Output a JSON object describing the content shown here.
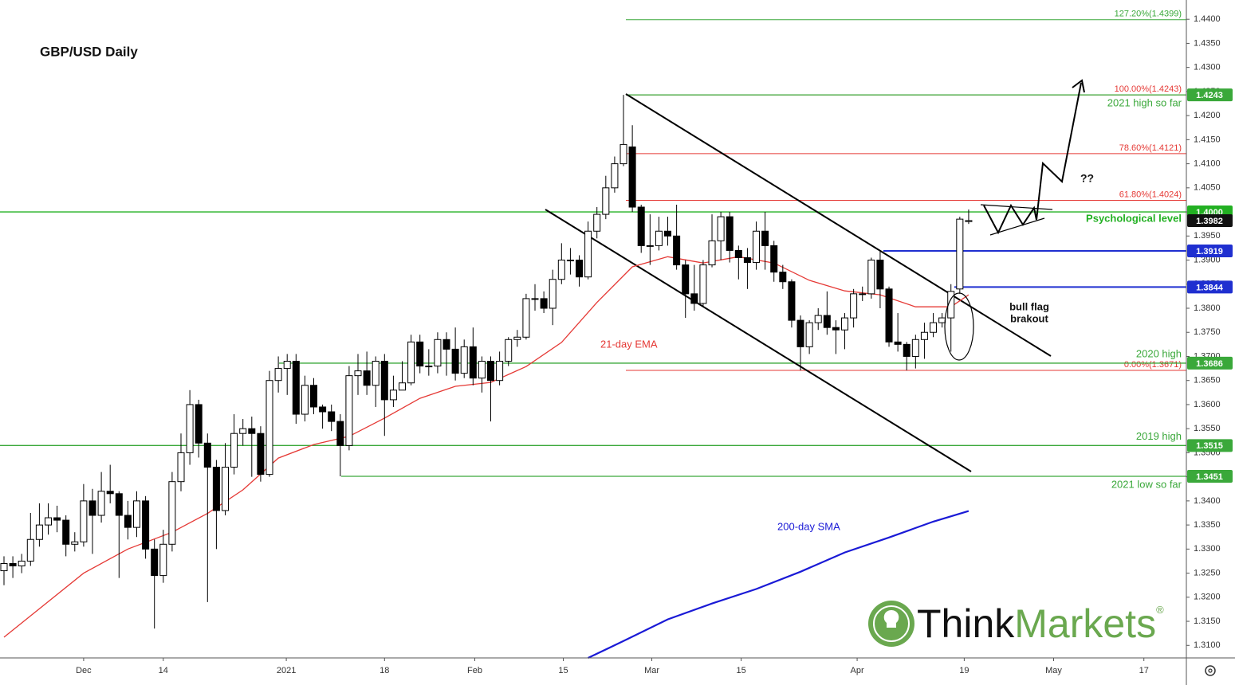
{
  "chart_data": {
    "type": "candlestick",
    "title": "GBP/USD Daily",
    "up_color": "#ffffff",
    "down_color": "#000000",
    "x": [
      0,
      1,
      2,
      3,
      4,
      5,
      6,
      7,
      8,
      9,
      10,
      11,
      12,
      13,
      14,
      15,
      16,
      17,
      18,
      19,
      20,
      21,
      22,
      23,
      24,
      25,
      26,
      27,
      28,
      29,
      30,
      31,
      32,
      33,
      34,
      35,
      36,
      37,
      38,
      39,
      40,
      41,
      42,
      43,
      44,
      45,
      46,
      47,
      48,
      49,
      50,
      51,
      52,
      53,
      54,
      55,
      56,
      57,
      58,
      59,
      60,
      61,
      62,
      63,
      64,
      65,
      66,
      67,
      68,
      69,
      70,
      71,
      72,
      73,
      74,
      75,
      76,
      77,
      78,
      79,
      80,
      81,
      82,
      83,
      84,
      85,
      86,
      87,
      88,
      89,
      90,
      91,
      92,
      93,
      94,
      95,
      96,
      97,
      98,
      99,
      100,
      101,
      102,
      103,
      104,
      105,
      106,
      107,
      108,
      109
    ],
    "open": [
      1.3255,
      1.327,
      1.3265,
      1.3275,
      1.332,
      1.335,
      1.3365,
      1.336,
      1.331,
      1.3315,
      1.34,
      1.337,
      1.342,
      1.3415,
      1.337,
      1.3345,
      1.34,
      1.33,
      1.3245,
      1.331,
      1.344,
      1.35,
      1.36,
      1.352,
      1.347,
      1.338,
      1.347,
      1.354,
      1.355,
      1.354,
      1.3455,
      1.365,
      1.3675,
      1.369,
      1.358,
      1.364,
      1.3595,
      1.3585,
      1.3565,
      1.3515,
      1.366,
      1.367,
      1.364,
      1.369,
      1.361,
      1.363,
      1.3645,
      1.373,
      1.368,
      1.368,
      1.3735,
      1.3715,
      1.3665,
      1.372,
      1.3655,
      1.369,
      1.365,
      1.369,
      1.3735,
      1.374,
      1.382,
      1.382,
      1.38,
      1.386,
      1.39,
      1.39,
      1.3865,
      1.396,
      1.3995,
      1.405,
      1.41,
      1.4135,
      1.401,
      1.393,
      1.393,
      1.396,
      1.395,
      1.389,
      1.383,
      1.381,
      1.389,
      1.394,
      1.399,
      1.392,
      1.3905,
      1.3895,
      1.396,
      1.393,
      1.3875,
      1.3855,
      1.3775,
      1.372,
      1.377,
      1.3785,
      1.376,
      1.3755,
      1.378,
      1.383,
      1.383,
      1.39,
      1.384,
      1.373,
      1.3725,
      1.37,
      1.3735,
      1.375,
      1.377,
      1.378,
      1.384,
      1.398
    ],
    "high": [
      1.3285,
      1.3285,
      1.329,
      1.3375,
      1.3395,
      1.3395,
      1.339,
      1.337,
      1.3335,
      1.3435,
      1.3425,
      1.346,
      1.3475,
      1.342,
      1.34,
      1.342,
      1.341,
      1.332,
      1.334,
      1.346,
      1.354,
      1.363,
      1.361,
      1.354,
      1.3485,
      1.352,
      1.358,
      1.357,
      1.3575,
      1.3555,
      1.367,
      1.37,
      1.3705,
      1.3705,
      1.366,
      1.3655,
      1.36,
      1.36,
      1.358,
      1.368,
      1.3705,
      1.371,
      1.37,
      1.3705,
      1.366,
      1.369,
      1.3745,
      1.3745,
      1.3715,
      1.375,
      1.375,
      1.376,
      1.3735,
      1.376,
      1.37,
      1.37,
      1.371,
      1.374,
      1.3755,
      1.383,
      1.385,
      1.3835,
      1.388,
      1.3935,
      1.3925,
      1.391,
      1.398,
      1.401,
      1.4075,
      1.4115,
      1.4243,
      1.418,
      1.4015,
      1.3995,
      1.399,
      1.399,
      1.4015,
      1.39,
      1.389,
      1.39,
      1.3995,
      1.4,
      1.4,
      1.393,
      1.3925,
      1.398,
      1.4,
      1.394,
      1.389,
      1.386,
      1.3785,
      1.3775,
      1.38,
      1.3835,
      1.3775,
      1.379,
      1.384,
      1.3845,
      1.3905,
      1.392,
      1.3845,
      1.379,
      1.373,
      1.3745,
      1.377,
      1.379,
      1.379,
      1.385,
      1.399,
      1.4005
    ],
    "low": [
      1.3225,
      1.324,
      1.325,
      1.3265,
      1.3305,
      1.333,
      1.3335,
      1.3285,
      1.3295,
      1.3305,
      1.329,
      1.3355,
      1.3395,
      1.324,
      1.332,
      1.3325,
      1.328,
      1.3135,
      1.323,
      1.3295,
      1.342,
      1.3475,
      1.349,
      1.319,
      1.33,
      1.337,
      1.3455,
      1.3515,
      1.345,
      1.344,
      1.345,
      1.3625,
      1.362,
      1.356,
      1.3565,
      1.358,
      1.355,
      1.3545,
      1.3451,
      1.3505,
      1.362,
      1.362,
      1.3595,
      1.3535,
      1.3595,
      1.363,
      1.364,
      1.3665,
      1.366,
      1.3665,
      1.366,
      1.365,
      1.3655,
      1.364,
      1.3625,
      1.3565,
      1.364,
      1.368,
      1.372,
      1.3735,
      1.3795,
      1.379,
      1.3765,
      1.385,
      1.387,
      1.3845,
      1.386,
      1.3945,
      1.3985,
      1.404,
      1.4095,
      1.4,
      1.3915,
      1.389,
      1.392,
      1.393,
      1.388,
      1.378,
      1.3795,
      1.3805,
      1.3885,
      1.39,
      1.3895,
      1.386,
      1.384,
      1.388,
      1.388,
      1.3855,
      1.384,
      1.376,
      1.3671,
      1.3705,
      1.3755,
      1.3745,
      1.3705,
      1.3715,
      1.376,
      1.3815,
      1.382,
      1.38,
      1.372,
      1.371,
      1.3671,
      1.3675,
      1.3695,
      1.374,
      1.376,
      1.371,
      1.383,
      1.3975
    ],
    "close": [
      1.327,
      1.3265,
      1.3275,
      1.332,
      1.335,
      1.3365,
      1.336,
      1.331,
      1.3315,
      1.34,
      1.337,
      1.342,
      1.3415,
      1.337,
      1.3345,
      1.34,
      1.33,
      1.3245,
      1.331,
      1.344,
      1.35,
      1.36,
      1.352,
      1.347,
      1.338,
      1.347,
      1.354,
      1.355,
      1.354,
      1.3455,
      1.365,
      1.3675,
      1.369,
      1.358,
      1.364,
      1.3595,
      1.3585,
      1.3565,
      1.3515,
      1.366,
      1.367,
      1.364,
      1.369,
      1.361,
      1.363,
      1.3645,
      1.373,
      1.368,
      1.368,
      1.3735,
      1.3715,
      1.3665,
      1.372,
      1.3655,
      1.369,
      1.365,
      1.369,
      1.3735,
      1.374,
      1.382,
      1.382,
      1.38,
      1.386,
      1.39,
      1.39,
      1.3865,
      1.396,
      1.3995,
      1.405,
      1.41,
      1.414,
      1.401,
      1.393,
      1.393,
      1.396,
      1.395,
      1.389,
      1.383,
      1.381,
      1.389,
      1.394,
      1.399,
      1.392,
      1.3905,
      1.3895,
      1.396,
      1.393,
      1.3875,
      1.3855,
      1.3775,
      1.372,
      1.377,
      1.3785,
      1.376,
      1.3755,
      1.378,
      1.383,
      1.383,
      1.39,
      1.384,
      1.373,
      1.3725,
      1.37,
      1.3735,
      1.375,
      1.377,
      1.378,
      1.3835,
      1.3985,
      1.3982
    ],
    "lines": [
      {
        "name": "21-day EMA",
        "color": "#e53935",
        "x": [
          0,
          9,
          14,
          19,
          23,
          27,
          31,
          35,
          39,
          43,
          47,
          51,
          55,
          59,
          63,
          67,
          71,
          75,
          79,
          83,
          87,
          91,
          95,
          99,
          103,
          107,
          109
        ],
        "values": [
          1.3117,
          1.325,
          1.33,
          1.3335,
          1.3374,
          1.3423,
          1.3489,
          1.3517,
          1.3534,
          1.3572,
          1.3613,
          1.3638,
          1.3646,
          1.3679,
          1.3729,
          1.3812,
          1.3886,
          1.3907,
          1.3894,
          1.3907,
          1.3894,
          1.3858,
          1.3836,
          1.3828,
          1.3803,
          1.3803,
          1.3828
        ]
      },
      {
        "name": "200-day SMA",
        "color": "#1a1ad6",
        "x": [
          66,
          70,
          75,
          80,
          85,
          90,
          95,
          100,
          105,
          109
        ],
        "values": [
          1.3074,
          1.3109,
          1.3154,
          1.3187,
          1.3217,
          1.3253,
          1.3293,
          1.3324,
          1.3357,
          1.3379
        ]
      }
    ],
    "levels": [
      {
        "value": 1.4243,
        "color": "#3aa83a",
        "text": "2021 high so far"
      },
      {
        "value": {
          "value": 1.4,
          "label": "1.4000"
        },
        "color": "#22b022",
        "text": "Psychological level"
      },
      {
        "value": 1.3919,
        "color": "#1f2fd0"
      },
      {
        "value": 1.3844,
        "color": "#1f2fd0"
      },
      {
        "value": 1.3686,
        "color": "#3aa83a",
        "text": "2020 high"
      },
      {
        "value": 1.3515,
        "color": "#3aa83a",
        "text": "2019 high"
      },
      {
        "value": 1.3451,
        "color": "#3aa83a",
        "text": "2021 low so far"
      }
    ],
    "fibs": [
      {
        "value": 1.4399,
        "text": "127.20%(1.4399)",
        "color": "#3aa83a"
      },
      {
        "value": 1.4243,
        "text": "100.00%(1.4243)",
        "color": "#e53935"
      },
      {
        "value": 1.4121,
        "text": "78.60%(1.4121)",
        "color": "#e53935"
      },
      {
        "value": 1.4024,
        "text": "61.80%(1.4024)",
        "color": "#e53935"
      },
      {
        "value": 1.3671,
        "text": "0.00%(1.3671)",
        "color": "#e53935"
      }
    ],
    "last_price": 1.3982,
    "annotations": [
      "bull flag",
      "brakout",
      "??"
    ],
    "xlim": [
      -0.45,
      133.6
    ],
    "xticks": [
      {
        "value": 9,
        "label": "Dec"
      },
      {
        "value": 18,
        "label": "14"
      },
      {
        "value": 31.9,
        "label": "2021"
      },
      {
        "value": 43,
        "label": "18"
      },
      {
        "value": 53.2,
        "label": "Feb"
      },
      {
        "value": 63.2,
        "label": "15"
      },
      {
        "value": 73.2,
        "label": "Mar"
      },
      {
        "value": 83.3,
        "label": "15"
      },
      {
        "value": 96.4,
        "label": "Apr"
      },
      {
        "value": 108.5,
        "label": "19"
      },
      {
        "value": 118.6,
        "label": "May"
      },
      {
        "value": 128.8,
        "label": "17"
      }
    ],
    "ylim": [
      1.3074,
      1.444
    ],
    "yticks": [
      {
        "value": 1.31,
        "label": "1.3100"
      },
      {
        "value": 1.315,
        "label": "1.3150"
      },
      {
        "value": 1.32,
        "label": "1.3200"
      },
      {
        "value": 1.325,
        "label": "1.3250"
      },
      {
        "value": 1.33,
        "label": "1.3300"
      },
      {
        "value": 1.335,
        "label": "1.3350"
      },
      {
        "value": 1.34,
        "label": "1.3400"
      },
      {
        "value": 1.345,
        "label": "1.3450"
      },
      {
        "value": 1.35,
        "label": "1.3500"
      },
      {
        "value": 1.355,
        "label": "1.3550"
      },
      {
        "value": 1.36,
        "label": "1.3600"
      },
      {
        "value": 1.365,
        "label": "1.3650"
      },
      {
        "value": 1.37,
        "label": "1.3700"
      },
      {
        "value": 1.375,
        "label": "1.3750"
      },
      {
        "value": 1.38,
        "label": "1.3800"
      },
      {
        "value": 1.385,
        "label": "1.3850"
      },
      {
        "value": 1.39,
        "label": "1.3900"
      },
      {
        "value": 1.395,
        "label": "1.3950"
      },
      {
        "value": 1.4,
        "label": "1.4000"
      },
      {
        "value": 1.405,
        "label": "1.4050"
      },
      {
        "value": 1.41,
        "label": "1.4100"
      },
      {
        "value": 1.415,
        "label": "1.4150"
      },
      {
        "value": 1.42,
        "label": "1.4200"
      },
      {
        "value": 1.425,
        "label": "1.4250"
      },
      {
        "value": 1.43,
        "label": "1.4300"
      },
      {
        "value": 1.435,
        "label": "1.4350"
      },
      {
        "value": 1.44,
        "label": "1.4400"
      }
    ],
    "grid": false
  },
  "logo": {
    "think": "Think",
    "markets": "Markets",
    "mark": "®"
  }
}
